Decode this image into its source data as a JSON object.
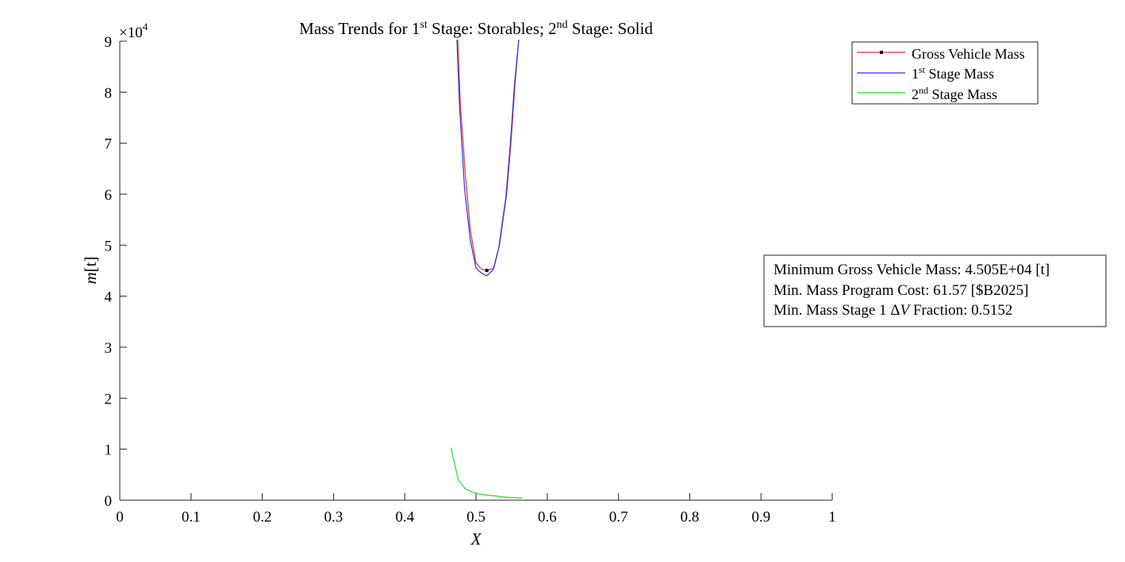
{
  "chart_data": {
    "type": "line",
    "title": {
      "prefix": "Mass Trends for 1",
      "sup1": "st",
      "middle": " Stage: Storables; 2",
      "sup2": "nd",
      "suffix": " Stage: Solid"
    },
    "xlabel": "X",
    "ylabel": {
      "italic": "m",
      "rest": "[t]"
    },
    "y_exponent": {
      "base": "×10",
      "power": "4"
    },
    "xlim": [
      0,
      1
    ],
    "ylim": [
      0,
      9
    ],
    "y_scale_factor": 10000,
    "x_ticks": [
      "0",
      "0.1",
      "0.2",
      "0.3",
      "0.4",
      "0.5",
      "0.6",
      "0.7",
      "0.8",
      "0.9",
      "1"
    ],
    "y_ticks": [
      "0",
      "1",
      "2",
      "3",
      "4",
      "5",
      "6",
      "7",
      "8",
      "9"
    ],
    "grid": false,
    "legend_position": "top-right",
    "series": [
      {
        "name": "Gross Vehicle Mass",
        "color": "#e8303a",
        "x": [
          0.474,
          0.478,
          0.485,
          0.492,
          0.5,
          0.508,
          0.5152,
          0.525,
          0.533,
          0.543,
          0.549,
          0.555,
          0.5605
        ],
        "y": [
          91000,
          78000,
          64000,
          53000,
          46500,
          45300,
          45050,
          45500,
          50000,
          60000,
          70000,
          82000,
          91000
        ]
      },
      {
        "name": "1st Stage Mass",
        "label_base": "1",
        "label_sup": "st",
        "label_rest": " Stage Mass",
        "color": "#2f2fe8",
        "x": [
          0.473,
          0.477,
          0.484,
          0.492,
          0.5,
          0.508,
          0.515,
          0.524,
          0.532,
          0.542,
          0.548,
          0.554,
          0.5605
        ],
        "y": [
          91000,
          77000,
          61000,
          51000,
          45500,
          44500,
          44000,
          45200,
          49500,
          59500,
          69500,
          81500,
          91000
        ]
      },
      {
        "name": "2nd Stage Mass",
        "label_base": "2",
        "label_sup": "nd",
        "label_rest": " Stage Mass",
        "color": "#22dd22",
        "x": [
          0.465,
          0.475,
          0.485,
          0.495,
          0.505,
          0.515,
          0.525,
          0.54,
          0.565
        ],
        "y": [
          10300,
          4000,
          2200,
          1600,
          1200,
          1000,
          850,
          600,
          400
        ]
      }
    ],
    "marker": {
      "x": 0.5152,
      "y": 45050,
      "color": "#000000"
    },
    "annotation": {
      "line1": "Minimum Gross Vehicle Mass: 4.505E+04 [t]",
      "line2": "Min. Mass Program Cost: 61.57 [$B2025]",
      "line3_prefix": "Min. Mass Stage 1 Δ",
      "line3_italic": "V",
      "line3_suffix": " Fraction: 0.5152"
    }
  }
}
